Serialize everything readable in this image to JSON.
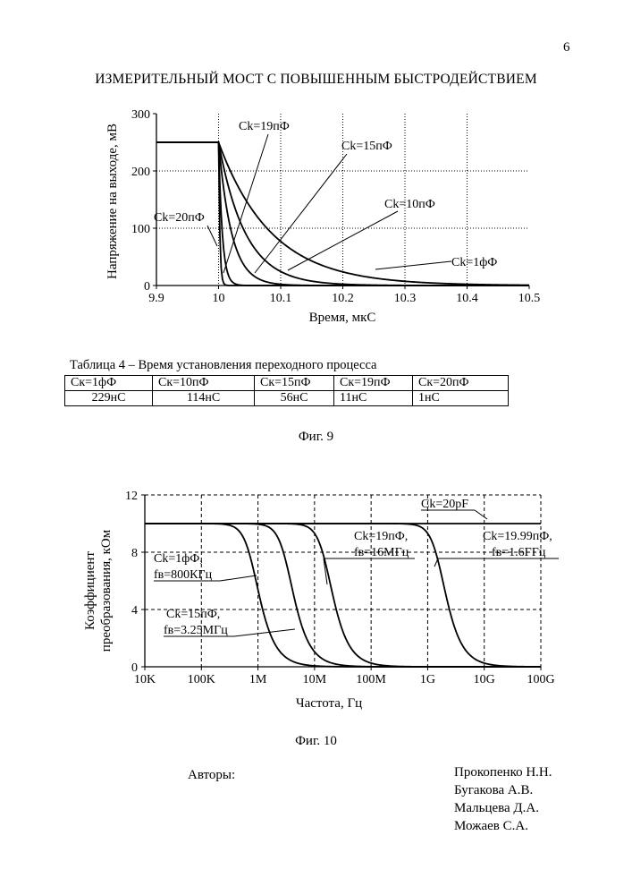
{
  "page_number": "6",
  "title": "ИЗМЕРИТЕЛЬНЫЙ МОСТ С ПОВЫШЕННЫМ БЫСТРОДЕЙСТВИЕМ",
  "chart_data": [
    {
      "type": "line",
      "title": "",
      "xlabel": "Время, мкС",
      "ylabel": "Напряжение на выходе, мВ",
      "xlim": [
        9.9,
        10.5
      ],
      "ylim": [
        0,
        300
      ],
      "x_ticks": [
        "9.9",
        "10",
        "10.1",
        "10.2",
        "10.3",
        "10.4",
        "10.5"
      ],
      "y_ticks": [
        "0",
        "100",
        "200",
        "300"
      ],
      "grid": true,
      "initial_level": 250,
      "step_time": 10.0,
      "series": [
        {
          "name": "Ck=1фФ",
          "tau": 0.085
        },
        {
          "name": "Ck=10пФ",
          "tau": 0.043
        },
        {
          "name": "Ck=15пФ",
          "tau": 0.021
        },
        {
          "name": "Ck=19пФ",
          "tau": 0.006
        },
        {
          "name": "Ck=20пФ",
          "tau": 0.002
        }
      ]
    },
    {
      "type": "line",
      "title": "",
      "xlabel": "Частота, Гц",
      "ylabel_lines": [
        "Коэффициент",
        "преобразования, кОм"
      ],
      "x_scale": "log",
      "xlim": [
        10000,
        100000000000
      ],
      "ylim": [
        0,
        12
      ],
      "x_ticks": [
        "10K",
        "100K",
        "1M",
        "10M",
        "100M",
        "1G",
        "10G",
        "100G"
      ],
      "y_ticks": [
        "0",
        "4",
        "8",
        "12"
      ],
      "grid": true,
      "series": [
        {
          "name": "Ck=20pF",
          "plateau": 10,
          "fc": null
        },
        {
          "name": "Ck=1фФ",
          "sublabel": "fв=800КГц",
          "plateau": 10,
          "fc": 800000
        },
        {
          "name": "Ck=15пФ",
          "sublabel": "fв=3.25МГц",
          "plateau": 10,
          "fc": 3250000
        },
        {
          "name": "Ck=19пФ",
          "sublabel": "fв=16МГц",
          "plateau": 10,
          "fc": 16000000
        },
        {
          "name": "Ck=19.99пФ",
          "sublabel": "fв=1.6ГГц",
          "plateau": 10,
          "fc": 1600000000
        }
      ]
    }
  ],
  "table": {
    "caption": "Таблица 4 – Время установления переходного процесса",
    "headers": [
      "Ск=1фФ",
      "Ск=10пФ",
      "Ск=15пФ",
      "Ск=19пФ",
      "Ск=20пФ"
    ],
    "values": [
      "229нС",
      "114нС",
      "56нС",
      "11нС",
      "1нС"
    ]
  },
  "fig9_caption": "Фиг. 9",
  "fig10_caption": "Фиг. 10",
  "authors_label": "Авторы:",
  "authors": [
    "Прокопенко Н.Н.",
    "Бугакова А.В.",
    "Мальцева Д.А.",
    "Можаев С.А."
  ]
}
